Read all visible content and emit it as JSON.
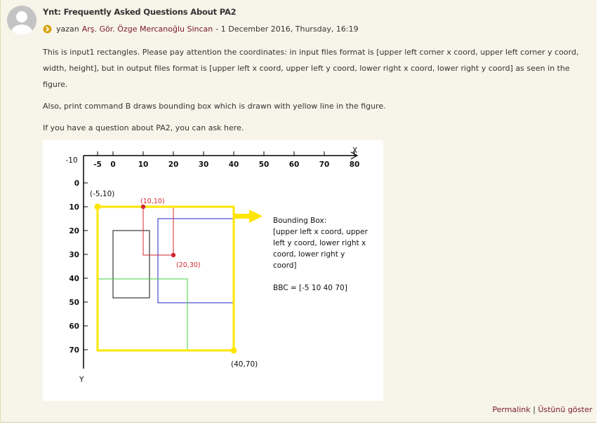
{
  "post": {
    "subject": "Ynt: Frequently Asked Questions About PA2",
    "byline_prefix": "yazan",
    "author": "Arş. Gör. Özge Mercanoğlu Sincan",
    "date": "- 1 December 2016, Thursday, 16:19",
    "paragraphs": [
      "This is input1 rectangles. Please pay attention the coordinates: in input files format is [upper left corner x coord, upper left corner y coord, width, height], but in output files format is [upper left x coord, upper left y coord, lower right x coord, lower right y coord] as seen in the figure.",
      "Also, print command B draws bounding box which is drawn with yellow line in the figure.",
      "If you have a question about PA2, you can ask here."
    ],
    "icons": {
      "byline": "arrow-circle-icon",
      "avatar": "user-avatar-icon"
    },
    "colors": {
      "author": "#7a1727",
      "background": "#f7f5e9"
    }
  },
  "figure": {
    "x_axis_label": "X",
    "y_axis_label": "Y",
    "x_ticks": [
      "-10",
      "-5",
      "0",
      "10",
      "20",
      "30",
      "40",
      "50",
      "60",
      "70",
      "80"
    ],
    "y_ticks": [
      "0",
      "10",
      "20",
      "30",
      "40",
      "50",
      "60",
      "70"
    ],
    "point_labels": {
      "top_left": "(-5,10)",
      "red_top": "(10,10)",
      "red_bottom": "(20,30)",
      "bottom_right": "(40,70)"
    },
    "bbox_title": "Bounding Box:",
    "bbox_description": [
      " [upper left x coord, upper",
      "left y coord, lower right x",
      "coord, lower right y",
      "coord]"
    ],
    "bbc": "BBC = [-5 10 40 70]",
    "colors": {
      "bounding_box": "#ffe600",
      "red": "#d4262e",
      "blue": "#2323c8",
      "green": "#3cd23c",
      "black": "#111111"
    }
  },
  "footer": {
    "permalink": "Permalink",
    "separator": "|",
    "show_parent": "Üstünü göster"
  }
}
